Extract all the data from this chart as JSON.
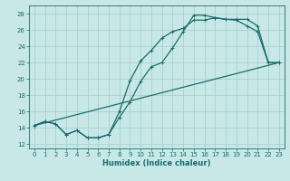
{
  "title": "",
  "xlabel": "Humidex (Indice chaleur)",
  "ylabel": "",
  "bg_color": "#c8e8e8",
  "grid_color": "#a8d0d0",
  "line_color": "#1a6b6b",
  "xlim": [
    -0.5,
    23.5
  ],
  "ylim": [
    11.5,
    29
  ],
  "xticks": [
    0,
    1,
    2,
    3,
    4,
    5,
    6,
    7,
    8,
    9,
    10,
    11,
    12,
    13,
    14,
    15,
    16,
    17,
    18,
    19,
    20,
    21,
    22,
    23
  ],
  "yticks": [
    12,
    14,
    16,
    18,
    20,
    22,
    24,
    26,
    28
  ],
  "line1_x": [
    0,
    1,
    2,
    3,
    4,
    5,
    6,
    7,
    8,
    9,
    10,
    11,
    12,
    13,
    14,
    15,
    16,
    17,
    18,
    19,
    20,
    21,
    22,
    23
  ],
  "line1_y": [
    14.3,
    14.8,
    14.5,
    13.2,
    13.7,
    12.8,
    12.8,
    13.2,
    15.3,
    17.2,
    19.7,
    21.5,
    22.0,
    23.8,
    25.8,
    27.8,
    27.8,
    27.5,
    27.3,
    27.2,
    26.5,
    25.8,
    22.0,
    22.0
  ],
  "line2_x": [
    0,
    1,
    2,
    3,
    4,
    5,
    6,
    7,
    8,
    9,
    10,
    11,
    12,
    13,
    14,
    15,
    16,
    17,
    18,
    19,
    20,
    21,
    22,
    23
  ],
  "line2_y": [
    14.3,
    14.8,
    14.5,
    13.2,
    13.7,
    12.8,
    12.8,
    13.2,
    16.0,
    19.8,
    22.2,
    23.5,
    25.0,
    25.8,
    26.2,
    27.2,
    27.2,
    27.5,
    27.3,
    27.3,
    27.3,
    26.5,
    22.0,
    22.0
  ],
  "line3_x": [
    0,
    23
  ],
  "line3_y": [
    14.3,
    22.0
  ]
}
